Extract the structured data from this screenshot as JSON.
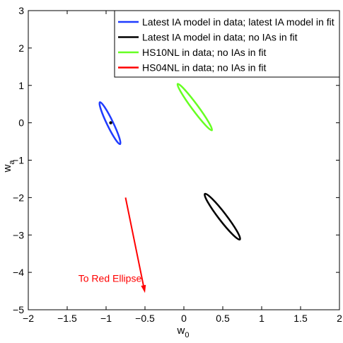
{
  "chart_data": {
    "type": "line",
    "title": "",
    "xlabel": "w",
    "xlabel_sub": "0",
    "ylabel": "w",
    "ylabel_sub": "a",
    "xlim": [
      -2,
      2
    ],
    "ylim": [
      -5,
      3
    ],
    "xticks": [
      -2,
      -1.5,
      -1,
      -0.5,
      0,
      0.5,
      1,
      1.5,
      2
    ],
    "xtick_labels": [
      "−2",
      "−1.5",
      "−1",
      "−0.5",
      "0",
      "0.5",
      "1",
      "1.5",
      "2"
    ],
    "yticks": [
      -5,
      -4,
      -3,
      -2,
      -1,
      0,
      1,
      2,
      3
    ],
    "ytick_labels": [
      "−5",
      "−4",
      "−3",
      "−2",
      "−1",
      "0",
      "1",
      "2",
      "3"
    ],
    "grid": false,
    "legend_position": "top-right",
    "series": [
      {
        "name": "Latest IA model in data; latest IA model in fit",
        "color": "#1f3bff",
        "ellipse": {
          "center": [
            -0.95,
            0.0
          ],
          "end1": [
            -1.08,
            0.55
          ],
          "end2": [
            -0.82,
            -0.57
          ],
          "minor_half_width": 0.04
        }
      },
      {
        "name": "Latest IA model in data; no IAs in fit",
        "color": "#000000",
        "ellipse": {
          "center": [
            0.5,
            -2.5
          ],
          "end1": [
            0.27,
            -1.9
          ],
          "end2": [
            0.72,
            -3.12
          ],
          "minor_half_width": 0.05
        }
      },
      {
        "name": "HS10NL in data; no IAs in fit",
        "color": "#66ff22",
        "ellipse": {
          "center": [
            0.14,
            0.43
          ],
          "end1": [
            -0.08,
            1.04
          ],
          "end2": [
            0.36,
            -0.2
          ],
          "minor_half_width": 0.04
        }
      },
      {
        "name": "HS04NL in data; no IAs in fit",
        "color": "#ff0000",
        "ellipse": null
      }
    ],
    "points": [
      {
        "x": -0.94,
        "y": 0.0,
        "color": "#000000"
      }
    ],
    "arrows": [
      {
        "from": [
          -0.75,
          -2.0
        ],
        "to": [
          -0.5,
          -4.55
        ],
        "color": "#ff0000"
      }
    ],
    "annotations": [
      {
        "text": "To Red Ellipse",
        "x": -0.95,
        "y": -4.25,
        "color": "#ff0000"
      }
    ]
  }
}
